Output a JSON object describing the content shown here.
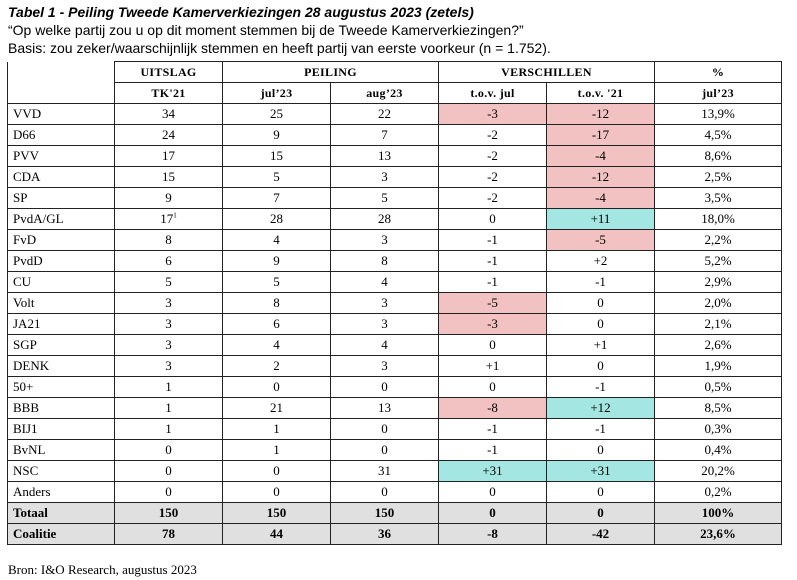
{
  "title": "Tabel 1 - Peiling Tweede Kamerverkiezingen 28 augustus 2023 (zetels)",
  "question": "“Op welke partij zou u op dit moment stemmen bij de Tweede Kamerverkiezingen?”",
  "basis": "Basis: zou zeker/waarschijnlijk stemmen en heeft partij van eerste voorkeur (n = 1.752).",
  "header_groups": {
    "uitslag": "UITSLAG",
    "peiling": "PEILING",
    "verschillen": "VERSCHILLEN",
    "percent": "%"
  },
  "header_cols": {
    "tk21": "TK'21",
    "jul23": "jul’23",
    "aug23": "aug’23",
    "tov_jul": "t.o.v. jul",
    "tov_21": "t.o.v. '21",
    "pct_jul23": "jul’23"
  },
  "highlight_colors": {
    "negative": "#f2c2c3",
    "positive": "#a3e6e2",
    "summary": "#e0e0e0"
  },
  "rows": [
    {
      "party": "VVD",
      "tk21": "34",
      "jul23": "25",
      "aug23": "22",
      "tov_jul": "-3",
      "tov_21": "-12",
      "pct": "13,9%",
      "hl_jul": "red",
      "hl_21": "red"
    },
    {
      "party": "D66",
      "tk21": "24",
      "jul23": "9",
      "aug23": "7",
      "tov_jul": "-2",
      "tov_21": "-17",
      "pct": "4,5%",
      "hl_jul": "",
      "hl_21": "red"
    },
    {
      "party": "PVV",
      "tk21": "17",
      "jul23": "15",
      "aug23": "13",
      "tov_jul": "-2",
      "tov_21": "-4",
      "pct": "8,6%",
      "hl_jul": "",
      "hl_21": "red"
    },
    {
      "party": "CDA",
      "tk21": "15",
      "jul23": "5",
      "aug23": "3",
      "tov_jul": "-2",
      "tov_21": "-12",
      "pct": "2,5%",
      "hl_jul": "",
      "hl_21": "red"
    },
    {
      "party": "SP",
      "tk21": "9",
      "jul23": "7",
      "aug23": "5",
      "tov_jul": "-2",
      "tov_21": "-4",
      "pct": "3,5%",
      "hl_jul": "",
      "hl_21": "red"
    },
    {
      "party": "PvdA/GL",
      "tk21": "17",
      "tk21_sup": "1",
      "jul23": "28",
      "aug23": "28",
      "tov_jul": "0",
      "tov_21": "+11",
      "pct": "18,0%",
      "hl_jul": "",
      "hl_21": "cyan"
    },
    {
      "party": "FvD",
      "tk21": "8",
      "jul23": "4",
      "aug23": "3",
      "tov_jul": "-1",
      "tov_21": "-5",
      "pct": "2,2%",
      "hl_jul": "",
      "hl_21": "red"
    },
    {
      "party": "PvdD",
      "tk21": "6",
      "jul23": "9",
      "aug23": "8",
      "tov_jul": "-1",
      "tov_21": "+2",
      "pct": "5,2%",
      "hl_jul": "",
      "hl_21": ""
    },
    {
      "party": "CU",
      "tk21": "5",
      "jul23": "5",
      "aug23": "4",
      "tov_jul": "-1",
      "tov_21": "-1",
      "pct": "2,9%",
      "hl_jul": "",
      "hl_21": ""
    },
    {
      "party": "Volt",
      "tk21": "3",
      "jul23": "8",
      "aug23": "3",
      "tov_jul": "-5",
      "tov_21": "0",
      "pct": "2,0%",
      "hl_jul": "red",
      "hl_21": ""
    },
    {
      "party": "JA21",
      "tk21": "3",
      "jul23": "6",
      "aug23": "3",
      "tov_jul": "-3",
      "tov_21": "0",
      "pct": "2,1%",
      "hl_jul": "red",
      "hl_21": ""
    },
    {
      "party": "SGP",
      "tk21": "3",
      "jul23": "4",
      "aug23": "4",
      "tov_jul": "0",
      "tov_21": "+1",
      "pct": "2,6%",
      "hl_jul": "",
      "hl_21": ""
    },
    {
      "party": "DENK",
      "tk21": "3",
      "jul23": "2",
      "aug23": "3",
      "tov_jul": "+1",
      "tov_21": "0",
      "pct": "1,9%",
      "hl_jul": "",
      "hl_21": ""
    },
    {
      "party": "50+",
      "tk21": "1",
      "jul23": "0",
      "aug23": "0",
      "tov_jul": "0",
      "tov_21": "-1",
      "pct": "0,5%",
      "hl_jul": "",
      "hl_21": ""
    },
    {
      "party": "BBB",
      "tk21": "1",
      "jul23": "21",
      "aug23": "13",
      "tov_jul": "-8",
      "tov_21": "+12",
      "pct": "8,5%",
      "hl_jul": "red",
      "hl_21": "cyan"
    },
    {
      "party": "BIJ1",
      "tk21": "1",
      "jul23": "1",
      "aug23": "0",
      "tov_jul": "-1",
      "tov_21": "-1",
      "pct": "0,3%",
      "hl_jul": "",
      "hl_21": ""
    },
    {
      "party": "BvNL",
      "tk21": "0",
      "jul23": "1",
      "aug23": "0",
      "tov_jul": "-1",
      "tov_21": "0",
      "pct": "0,4%",
      "hl_jul": "",
      "hl_21": ""
    },
    {
      "party": "NSC",
      "tk21": "0",
      "jul23": "0",
      "aug23": "31",
      "tov_jul": "+31",
      "tov_21": "+31",
      "pct": "20,2%",
      "hl_jul": "cyan",
      "hl_21": "cyan"
    },
    {
      "party": "Anders",
      "tk21": "0",
      "jul23": "0",
      "aug23": "0",
      "tov_jul": "0",
      "tov_21": "0",
      "pct": "0,2%",
      "hl_jul": "",
      "hl_21": ""
    }
  ],
  "summary_rows": [
    {
      "party": "Totaal",
      "tk21": "150",
      "jul23": "150",
      "aug23": "150",
      "tov_jul": "0",
      "tov_21": "0",
      "pct": "100%"
    },
    {
      "party": "Coalitie",
      "tk21": "78",
      "jul23": "44",
      "aug23": "36",
      "tov_jul": "-8",
      "tov_21": "-42",
      "pct": "23,6%"
    }
  ],
  "source": "Bron: I&O Research, augustus 2023"
}
